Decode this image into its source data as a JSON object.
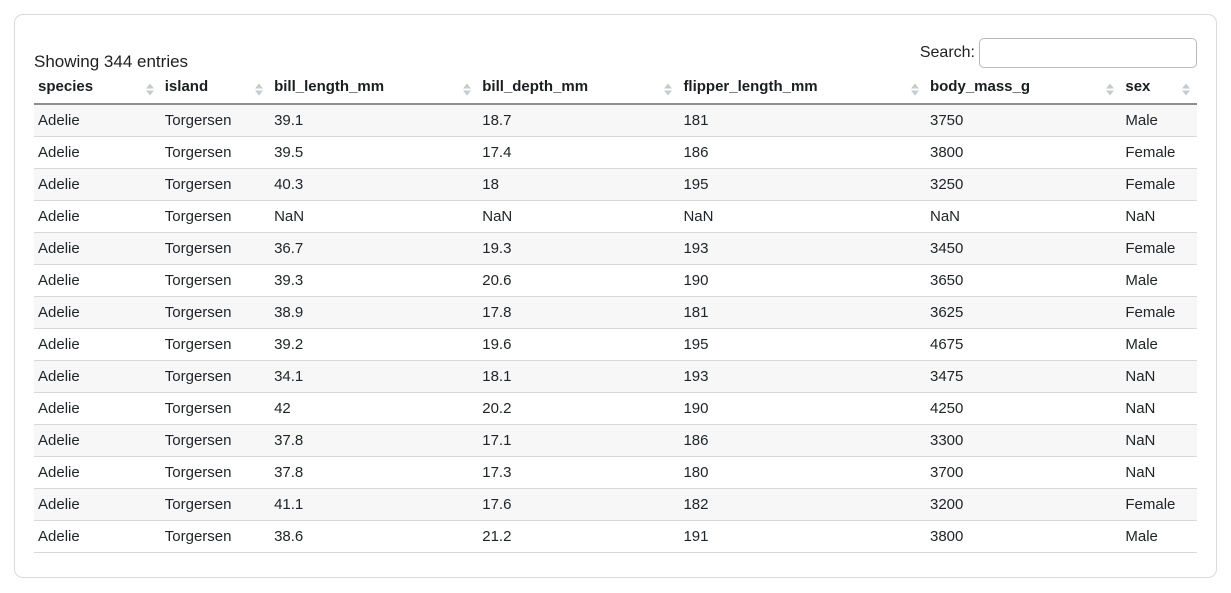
{
  "info": {
    "text": "Showing 344 entries"
  },
  "search": {
    "label": "Search:",
    "value": "",
    "placeholder": ""
  },
  "table": {
    "columns": [
      "species",
      "island",
      "bill_length_mm",
      "bill_depth_mm",
      "flipper_length_mm",
      "body_mass_g",
      "sex"
    ],
    "sort_state": "unsorted",
    "rows": [
      [
        "Adelie",
        "Torgersen",
        "39.1",
        "18.7",
        "181",
        "3750",
        "Male"
      ],
      [
        "Adelie",
        "Torgersen",
        "39.5",
        "17.4",
        "186",
        "3800",
        "Female"
      ],
      [
        "Adelie",
        "Torgersen",
        "40.3",
        "18",
        "195",
        "3250",
        "Female"
      ],
      [
        "Adelie",
        "Torgersen",
        "NaN",
        "NaN",
        "NaN",
        "NaN",
        "NaN"
      ],
      [
        "Adelie",
        "Torgersen",
        "36.7",
        "19.3",
        "193",
        "3450",
        "Female"
      ],
      [
        "Adelie",
        "Torgersen",
        "39.3",
        "20.6",
        "190",
        "3650",
        "Male"
      ],
      [
        "Adelie",
        "Torgersen",
        "38.9",
        "17.8",
        "181",
        "3625",
        "Female"
      ],
      [
        "Adelie",
        "Torgersen",
        "39.2",
        "19.6",
        "195",
        "4675",
        "Male"
      ],
      [
        "Adelie",
        "Torgersen",
        "34.1",
        "18.1",
        "193",
        "3475",
        "NaN"
      ],
      [
        "Adelie",
        "Torgersen",
        "42",
        "20.2",
        "190",
        "4250",
        "NaN"
      ],
      [
        "Adelie",
        "Torgersen",
        "37.8",
        "17.1",
        "186",
        "3300",
        "NaN"
      ],
      [
        "Adelie",
        "Torgersen",
        "37.8",
        "17.3",
        "180",
        "3700",
        "NaN"
      ],
      [
        "Adelie",
        "Torgersen",
        "41.1",
        "17.6",
        "182",
        "3200",
        "Female"
      ],
      [
        "Adelie",
        "Torgersen",
        "38.6",
        "21.2",
        "191",
        "3800",
        "Male"
      ]
    ]
  },
  "colors": {
    "card_border": "#d9d9d9",
    "header_border": "#8e8e8e",
    "row_border": "#d8d8d8",
    "stripe": "#f7f7f7",
    "sort_icon": "#c6cbd0",
    "text": "#212529"
  }
}
